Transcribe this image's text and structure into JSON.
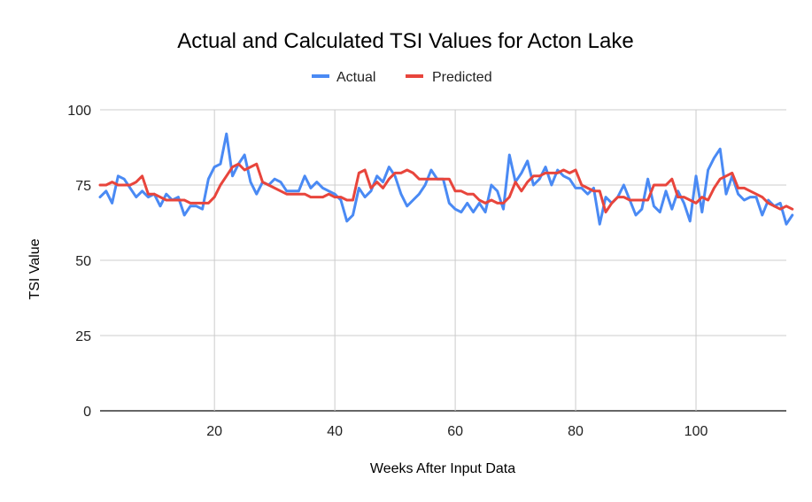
{
  "chart_data": {
    "type": "line",
    "title": "Actual and Calculated TSI Values for Acton Lake",
    "xlabel": "Weeks After Input Data",
    "ylabel": "TSI Value",
    "xlim": [
      1,
      115
    ],
    "ylim": [
      0,
      100
    ],
    "x_ticks": [
      20,
      40,
      60,
      80,
      100
    ],
    "y_ticks": [
      0,
      25,
      50,
      75,
      100
    ],
    "grid": true,
    "legend_position": "top",
    "series": [
      {
        "name": "Actual",
        "color": "#4a8af4",
        "values": [
          71,
          73,
          69,
          78,
          77,
          74,
          71,
          73,
          71,
          72,
          68,
          72,
          70,
          71,
          65,
          68,
          68,
          67,
          77,
          81,
          82,
          92,
          78,
          82,
          85,
          76,
          72,
          76,
          75,
          77,
          76,
          73,
          73,
          73,
          78,
          74,
          76,
          74,
          73,
          72,
          70,
          63,
          65,
          74,
          71,
          73,
          78,
          76,
          81,
          78,
          72,
          68,
          70,
          72,
          75,
          80,
          77,
          77,
          69,
          67,
          66,
          69,
          66,
          69,
          66,
          75,
          73,
          67,
          85,
          76,
          79,
          83,
          75,
          77,
          81,
          75,
          80,
          78,
          77,
          74,
          74,
          72,
          74,
          62,
          71,
          69,
          71,
          75,
          70,
          65,
          67,
          77,
          68,
          66,
          73,
          67,
          73,
          69,
          63,
          78,
          66,
          80,
          84,
          87,
          72,
          78,
          72,
          70,
          71,
          71,
          65,
          70,
          68,
          69,
          62,
          65
        ],
        "x_start": 1
      },
      {
        "name": "Predicted",
        "color": "#e8453c",
        "values": [
          75,
          75,
          76,
          75,
          75,
          75,
          76,
          78,
          72,
          72,
          71,
          70,
          70,
          70,
          70,
          69,
          69,
          69,
          69,
          71,
          75,
          78,
          81,
          82,
          80,
          81,
          82,
          76,
          75,
          74,
          73,
          72,
          72,
          72,
          72,
          71,
          71,
          71,
          72,
          71,
          71,
          70,
          70,
          79,
          80,
          74,
          76,
          74,
          77,
          79,
          79,
          80,
          79,
          77,
          77,
          77,
          77,
          77,
          77,
          73,
          73,
          72,
          72,
          70,
          69,
          70,
          69,
          69,
          71,
          76,
          73,
          76,
          78,
          78,
          79,
          79,
          79,
          80,
          79,
          80,
          75,
          74,
          73,
          73,
          66,
          69,
          71,
          71,
          70,
          70,
          70,
          70,
          75,
          75,
          75,
          77,
          71,
          71,
          70,
          69,
          71,
          70,
          74,
          77,
          78,
          79,
          74,
          74,
          73,
          72,
          71,
          69,
          68,
          67,
          68,
          67
        ],
        "x_start": 1
      }
    ]
  }
}
